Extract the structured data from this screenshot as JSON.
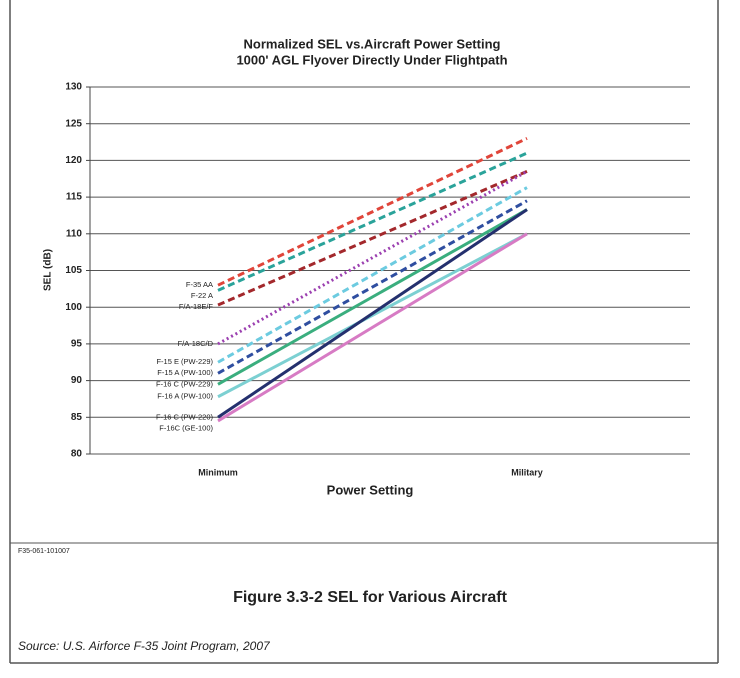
{
  "chart_data": {
    "type": "line",
    "title": "Normalized SEL vs.Aircraft Power Setting",
    "subtitle": "1000' AGL Flyover Directly Under Flightpath",
    "xlabel": "Power Setting",
    "ylabel": "SEL (dB)",
    "categories": [
      "Minimum",
      "Military"
    ],
    "ylim": [
      80,
      130
    ],
    "yticks": [
      80,
      85,
      90,
      95,
      100,
      105,
      110,
      115,
      120,
      125,
      130
    ],
    "grid": true,
    "series": [
      {
        "name": "F-35 AA",
        "color": "#e0453a",
        "dash": "dashed",
        "values": [
          103,
          123
        ]
      },
      {
        "name": "F-22 A",
        "color": "#2aa39a",
        "dash": "dashed",
        "values": [
          102.3,
          121
        ]
      },
      {
        "name": "F/A-18E/F",
        "color": "#a3282c",
        "dash": "dashed",
        "values": [
          100.3,
          118.5
        ]
      },
      {
        "name": "F/A-18C/D",
        "color": "#9b3fb0",
        "dash": "dotted",
        "values": [
          95,
          118.5
        ]
      },
      {
        "name": "F-15 E (PW-229)",
        "color": "#6ccbe0",
        "dash": "dashed",
        "values": [
          92.5,
          116.3
        ]
      },
      {
        "name": "F-15 A (PW-100)",
        "color": "#2f4ea0",
        "dash": "dashed",
        "values": [
          91,
          114.5
        ]
      },
      {
        "name": "F-16 C (PW-229)",
        "color": "#3aae7e",
        "dash": "solid",
        "values": [
          89.5,
          113.3
        ]
      },
      {
        "name": "F-16 A (PW-100)",
        "color": "#7cd0d2",
        "dash": "solid",
        "values": [
          87.8,
          110
        ]
      },
      {
        "name": "F-16 C (PW-220)",
        "color": "#24306e",
        "dash": "solid",
        "values": [
          85,
          113.3
        ]
      },
      {
        "name": "F-16C (GE-100)",
        "color": "#d77bc4",
        "dash": "solid",
        "values": [
          84.5,
          110
        ]
      }
    ]
  },
  "figure_id": "F35-061-101007",
  "caption": "Figure 3.3-2 SEL for Various Aircraft",
  "source": "Source: U.S. Airforce F-35 Joint Program, 2007"
}
